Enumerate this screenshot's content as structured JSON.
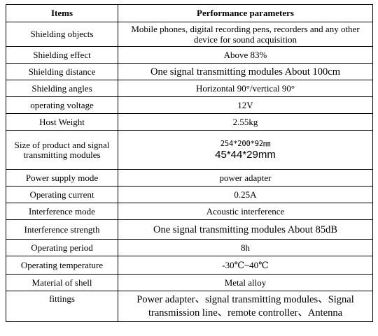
{
  "table": {
    "headers": [
      "Items",
      "Performance parameters"
    ],
    "rows": [
      {
        "item": "Shielding objects",
        "value": "Mobile phones, digital recording pens, recorders and any other device for sound acquisition"
      },
      {
        "item": "Shielding effect",
        "value": "Above 83%"
      },
      {
        "item": "Shielding distance",
        "value": "One signal transmitting modules About 100cm"
      },
      {
        "item": "Shielding angles",
        "value": "Horizontal 90°/vertical 90°"
      },
      {
        "item": "operating voltage",
        "value": "12V"
      },
      {
        "item": "Host Weight",
        "value": "2.55kg"
      },
      {
        "item": "Size of product and signal transmitting modules",
        "value": "254*200*92㎜",
        "value2": "45*44*29mm"
      },
      {
        "item": "Power supply mode",
        "value": "power adapter"
      },
      {
        "item": "Operating current",
        "value": "0.25A"
      },
      {
        "item": "Interference mode",
        "value": "Acoustic interference"
      },
      {
        "item": "Interference strength",
        "value": "One signal transmitting modules About 85dB"
      },
      {
        "item": "Operating period",
        "value": "8h"
      },
      {
        "item": "Operating temperature",
        "value": "-30℃~40℃"
      },
      {
        "item": "Material of shell",
        "value": "Metal alloy"
      },
      {
        "item": "fittings",
        "value": "Power adapter、signal transmitting modules、Signal transmission line、remote controller、Antenna"
      }
    ]
  }
}
